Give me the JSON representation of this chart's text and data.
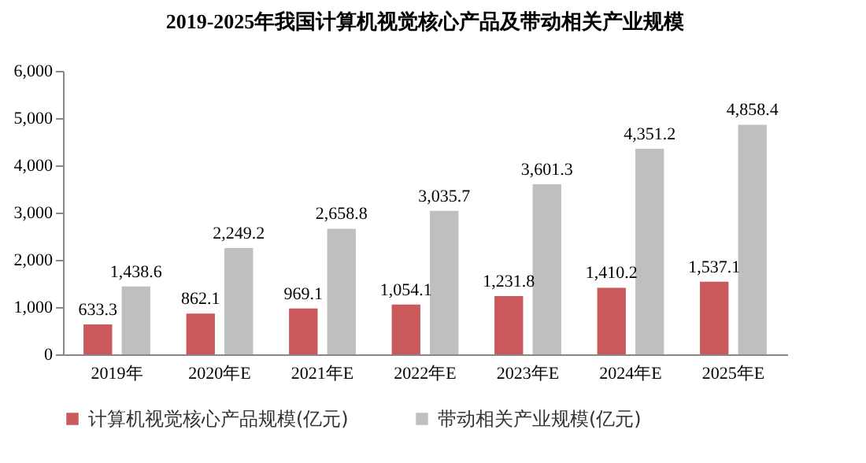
{
  "chart_data": {
    "type": "bar",
    "title": "2019-2025年我国计算机视觉核心产品及带动相关产业规模",
    "categories": [
      "2019年",
      "2020年E",
      "2021年E",
      "2022年E",
      "2023年E",
      "2024年E",
      "2025年E"
    ],
    "series": [
      {
        "name": "计算机视觉核心产品规模(亿元)",
        "color": "#c9595a",
        "values": [
          633.3,
          862.1,
          969.1,
          1054.1,
          1231.8,
          1410.2,
          1537.1
        ],
        "value_labels": [
          "633.3",
          "862.1",
          "969.1",
          "1,054.1",
          "1,231.8",
          "1,410.2",
          "1,537.1"
        ]
      },
      {
        "name": "带动相关产业规模(亿元)",
        "color": "#bfbfbf",
        "values": [
          1438.6,
          2249.2,
          2658.8,
          3035.7,
          3601.3,
          4351.2,
          4858.4
        ],
        "value_labels": [
          "1,438.6",
          "2,249.2",
          "2,658.8",
          "3,035.7",
          "3,601.3",
          "4,351.2",
          "4,858.4"
        ]
      }
    ],
    "ylim": [
      0,
      6000
    ],
    "yticks": [
      {
        "value": 0,
        "label": "0"
      },
      {
        "value": 1000,
        "label": "1,000"
      },
      {
        "value": 2000,
        "label": "2,000"
      },
      {
        "value": 3000,
        "label": "3,000"
      },
      {
        "value": 4000,
        "label": "4,000"
      },
      {
        "value": 5000,
        "label": "5,000"
      },
      {
        "value": 6000,
        "label": "6,000"
      }
    ],
    "grid": false,
    "legend": "bottom"
  }
}
